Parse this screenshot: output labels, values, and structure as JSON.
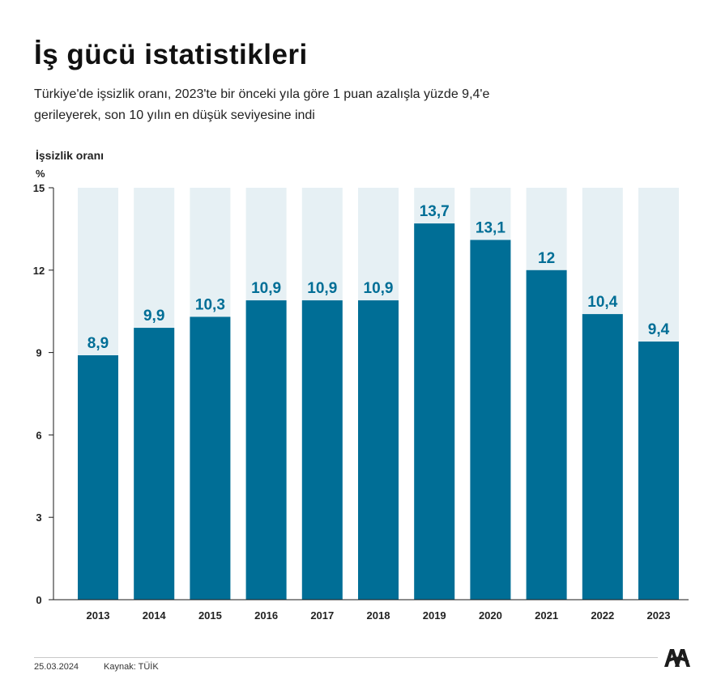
{
  "header": {
    "title": "İş gücü istatistikleri",
    "subtitle": "Türkiye'de işsizlik oranı, 2023'te bir önceki yıla göre 1 puan azalışla yüzde 9,4'e gerileyerek, son 10 yılın en düşük seviyesine indi"
  },
  "chart_data": {
    "type": "bar",
    "ylabel": "İşsizlik oranı",
    "yunit": "%",
    "categories": [
      "2013",
      "2014",
      "2015",
      "2016",
      "2017",
      "2018",
      "2019",
      "2020",
      "2021",
      "2022",
      "2023"
    ],
    "values": [
      8.9,
      9.9,
      10.3,
      10.9,
      10.9,
      10.9,
      13.7,
      13.1,
      12,
      10.4,
      9.4
    ],
    "value_labels": [
      "8,9",
      "9,9",
      "10,3",
      "10,9",
      "10,9",
      "10,9",
      "13,7",
      "13,1",
      "12",
      "10,4",
      "9,4"
    ],
    "ylim": [
      0,
      15
    ],
    "yticks": [
      0,
      3,
      6,
      9,
      12,
      15
    ],
    "grid": false,
    "bar_color": "#006e96",
    "bar_background_color": "#e6f0f4",
    "label_color": "#006e96"
  },
  "footer": {
    "date": "25.03.2024",
    "source": "Kaynak: TÜİK",
    "logo_icon": "aa-logo-icon"
  }
}
